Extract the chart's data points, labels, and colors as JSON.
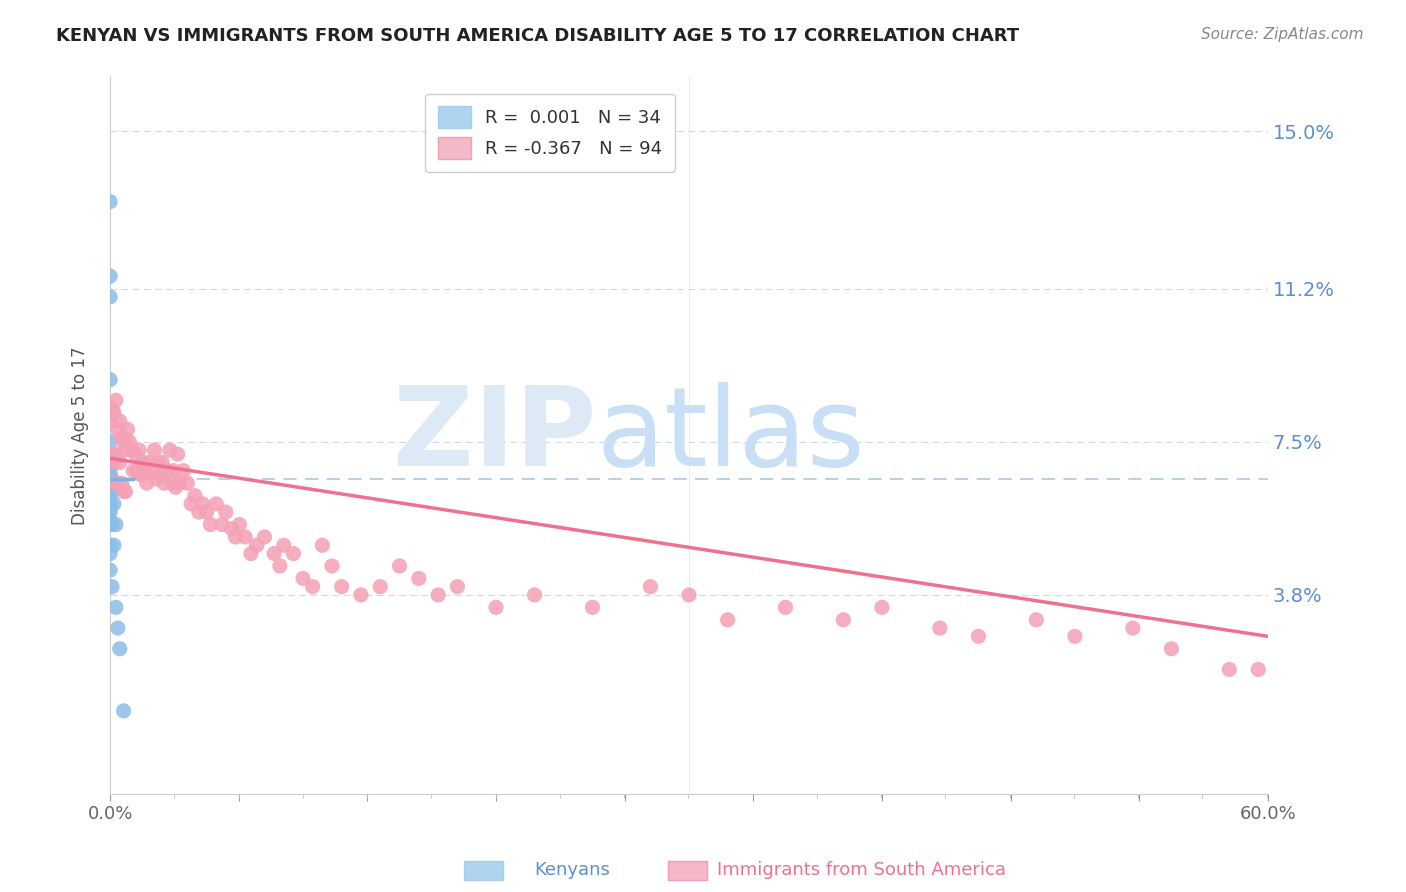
{
  "title": "KENYAN VS IMMIGRANTS FROM SOUTH AMERICA DISABILITY AGE 5 TO 17 CORRELATION CHART",
  "source": "Source: ZipAtlas.com",
  "ylabel": "Disability Age 5 to 17",
  "xlim": [
    0,
    0.6
  ],
  "ylim": [
    -0.01,
    0.163
  ],
  "xtick_labels": [
    "0.0%",
    "",
    "",
    "",
    "",
    "",
    "",
    "",
    "",
    "60.0%"
  ],
  "xtick_positions": [
    0.0,
    0.067,
    0.133,
    0.2,
    0.267,
    0.333,
    0.4,
    0.467,
    0.533,
    0.6
  ],
  "ytick_labels": [
    "15.0%",
    "11.2%",
    "7.5%",
    "3.8%"
  ],
  "ytick_positions": [
    0.15,
    0.112,
    0.075,
    0.038
  ],
  "hline_y": 0.066,
  "hline_color": "#aac8e8",
  "background_color": "#ffffff",
  "grid_color": "#d0d8e8",
  "title_color": "#222222",
  "source_color": "#888888",
  "watermark_color": "#ddeaf5",
  "blue_color": "#7ab3e0",
  "blue_marker": "#8bbde8",
  "pink_color": "#f07090",
  "pink_marker": "#f4a0b5",
  "blue_trend_x": [
    0.0,
    0.012
  ],
  "blue_trend_y": [
    0.066,
    0.066
  ],
  "pink_trend_x": [
    0.0,
    0.6
  ],
  "pink_trend_y": [
    0.071,
    0.028
  ],
  "blue_x": [
    0.0,
    0.0,
    0.0,
    0.0,
    0.0,
    0.0,
    0.0,
    0.0,
    0.0,
    0.0,
    0.0,
    0.0,
    0.0,
    0.0,
    0.0,
    0.0,
    0.0,
    0.0,
    0.0,
    0.0,
    0.0,
    0.0,
    0.0,
    0.001,
    0.001,
    0.001,
    0.001,
    0.002,
    0.002,
    0.003,
    0.003,
    0.004,
    0.005,
    0.007
  ],
  "blue_y": [
    0.133,
    0.115,
    0.11,
    0.09,
    0.075,
    0.072,
    0.07,
    0.069,
    0.068,
    0.067,
    0.066,
    0.065,
    0.064,
    0.063,
    0.062,
    0.06,
    0.059,
    0.058,
    0.056,
    0.055,
    0.05,
    0.048,
    0.044,
    0.066,
    0.063,
    0.055,
    0.04,
    0.06,
    0.05,
    0.055,
    0.035,
    0.03,
    0.025,
    0.01
  ],
  "pink_x": [
    0.0,
    0.0,
    0.001,
    0.001,
    0.002,
    0.002,
    0.003,
    0.003,
    0.004,
    0.004,
    0.005,
    0.005,
    0.006,
    0.006,
    0.007,
    0.007,
    0.008,
    0.008,
    0.009,
    0.01,
    0.011,
    0.012,
    0.013,
    0.014,
    0.015,
    0.016,
    0.017,
    0.018,
    0.019,
    0.02,
    0.022,
    0.023,
    0.024,
    0.025,
    0.026,
    0.027,
    0.028,
    0.03,
    0.031,
    0.032,
    0.033,
    0.034,
    0.035,
    0.036,
    0.038,
    0.04,
    0.042,
    0.044,
    0.046,
    0.048,
    0.05,
    0.052,
    0.055,
    0.058,
    0.06,
    0.063,
    0.065,
    0.067,
    0.07,
    0.073,
    0.076,
    0.08,
    0.085,
    0.088,
    0.09,
    0.095,
    0.1,
    0.105,
    0.11,
    0.115,
    0.12,
    0.13,
    0.14,
    0.15,
    0.16,
    0.17,
    0.18,
    0.2,
    0.22,
    0.25,
    0.28,
    0.3,
    0.32,
    0.35,
    0.38,
    0.4,
    0.43,
    0.45,
    0.48,
    0.5,
    0.53,
    0.55,
    0.58,
    0.595
  ],
  "pink_y": [
    0.08,
    0.065,
    0.083,
    0.072,
    0.082,
    0.07,
    0.085,
    0.072,
    0.078,
    0.065,
    0.08,
    0.07,
    0.076,
    0.065,
    0.075,
    0.063,
    0.073,
    0.063,
    0.078,
    0.075,
    0.073,
    0.068,
    0.072,
    0.068,
    0.073,
    0.067,
    0.07,
    0.068,
    0.065,
    0.07,
    0.068,
    0.073,
    0.066,
    0.07,
    0.067,
    0.07,
    0.065,
    0.068,
    0.073,
    0.065,
    0.068,
    0.064,
    0.072,
    0.065,
    0.068,
    0.065,
    0.06,
    0.062,
    0.058,
    0.06,
    0.058,
    0.055,
    0.06,
    0.055,
    0.058,
    0.054,
    0.052,
    0.055,
    0.052,
    0.048,
    0.05,
    0.052,
    0.048,
    0.045,
    0.05,
    0.048,
    0.042,
    0.04,
    0.05,
    0.045,
    0.04,
    0.038,
    0.04,
    0.045,
    0.042,
    0.038,
    0.04,
    0.035,
    0.038,
    0.035,
    0.04,
    0.038,
    0.032,
    0.035,
    0.032,
    0.035,
    0.03,
    0.028,
    0.032,
    0.028,
    0.03,
    0.025,
    0.02,
    0.02
  ],
  "legend_blue_label": "R =  0.001   N = 34",
  "legend_pink_label": "R = -0.367   N = 94",
  "legend_blue_color": "#aed4f0",
  "legend_pink_color": "#f4b8c8"
}
